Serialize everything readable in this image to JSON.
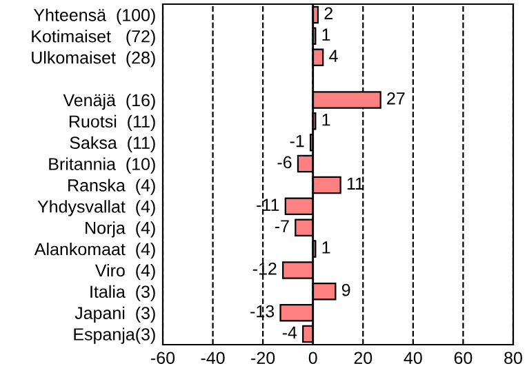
{
  "chart_data": {
    "type": "bar",
    "orientation": "horizontal",
    "categories": [
      "Yhteensä  (100)",
      "Kotimaiset   (72)",
      "Ulkomaiset  (28)",
      null,
      "Venäjä  (16)",
      "Ruotsi  (11)",
      "Saksa  (11)",
      "Britannia  (10)",
      "Ranska  (4)",
      "Yhdysvallat  (4)",
      "Norja  (4)",
      "Alankomaat  (4)",
      "Viro  (4)",
      "Italia  (3)",
      "Japani  (3)",
      "Espanja(3)"
    ],
    "values": [
      2,
      1,
      4,
      null,
      27,
      1,
      -1,
      -6,
      11,
      -11,
      -7,
      1,
      -12,
      9,
      -13,
      -4
    ],
    "color": "#ff8080",
    "data_labels": true,
    "xlim": [
      -60,
      80
    ],
    "xticks": [
      -60,
      -40,
      -20,
      0,
      20,
      40,
      60,
      80
    ],
    "grid": "x",
    "ref_lines": [
      {
        "axis": "x",
        "value": 0,
        "color": "#000000",
        "line_style": "solid"
      }
    ]
  }
}
